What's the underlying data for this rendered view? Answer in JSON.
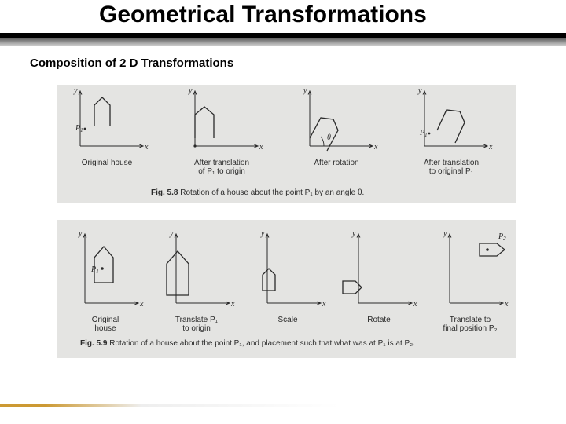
{
  "title": "Geometrical Transformations",
  "subtitle": "Composition of 2 D Transformations",
  "fig58": {
    "bg": "#e4e4e2",
    "stroke": "#2a2a2a",
    "panels": [
      {
        "label_lines": [
          "Original house"
        ],
        "axis_x": "x",
        "axis_y": "y",
        "point": "P",
        "point_sub": "1",
        "house": [
          [
            18,
            45
          ],
          [
            18,
            18
          ],
          [
            28,
            8
          ],
          [
            38,
            18
          ],
          [
            38,
            45
          ]
        ],
        "house_closed": false,
        "p_xy": [
          12,
          50
        ]
      },
      {
        "label_lines": [
          "After translation",
          "of P₁ to origin"
        ],
        "axis_x": "x",
        "axis_y": "y",
        "house": [
          [
            0,
            60
          ],
          [
            0,
            30
          ],
          [
            12,
            20
          ],
          [
            24,
            30
          ],
          [
            24,
            60
          ]
        ],
        "house_closed": false,
        "origin_dot": true
      },
      {
        "label_lines": [
          "After rotation"
        ],
        "axis_x": "x",
        "axis_y": "y",
        "house": [
          [
            0,
            60
          ],
          [
            14,
            34
          ],
          [
            30,
            36
          ],
          [
            36,
            50
          ],
          [
            22,
            76
          ]
        ],
        "house_closed": false,
        "theta": "θ",
        "theta_arc": true
      },
      {
        "label_lines": [
          "After translation",
          "to original P₁"
        ],
        "axis_x": "x",
        "axis_y": "y",
        "point": "P",
        "point_sub": "1",
        "house": [
          [
            16,
            50
          ],
          [
            28,
            24
          ],
          [
            45,
            26
          ],
          [
            51,
            40
          ],
          [
            39,
            66
          ]
        ],
        "house_closed": false,
        "p_xy": [
          12,
          56
        ]
      }
    ],
    "caption_bold": "Fig. 5.8",
    "caption_rest": "  Rotation of a house about the point P₁ by an angle θ."
  },
  "fig59": {
    "bg": "#e4e4e2",
    "stroke": "#2a2a2a",
    "panels": [
      {
        "label_lines": [
          "Original",
          "house"
        ],
        "axis_x": "x",
        "axis_y": "y",
        "house": [
          [
            12,
            62
          ],
          [
            12,
            30
          ],
          [
            24,
            16
          ],
          [
            36,
            30
          ],
          [
            36,
            62
          ],
          [
            12,
            62
          ]
        ],
        "house_closed": true,
        "p_label": "P",
        "p_sub": "1",
        "p_dot": [
          22,
          44
        ]
      },
      {
        "label_lines": [
          "Translate P₁",
          "to origin"
        ],
        "axis_x": "x",
        "axis_y": "y",
        "house": [
          [
            -12,
            78
          ],
          [
            -12,
            38
          ],
          [
            2,
            22
          ],
          [
            16,
            38
          ],
          [
            16,
            78
          ],
          [
            -12,
            78
          ]
        ],
        "house_closed": true
      },
      {
        "label_lines": [
          "Scale"
        ],
        "axis_x": "x",
        "axis_y": "y",
        "house": [
          [
            -6,
            72
          ],
          [
            -6,
            52
          ],
          [
            2,
            44
          ],
          [
            10,
            52
          ],
          [
            10,
            72
          ],
          [
            -6,
            72
          ]
        ],
        "house_closed": true
      },
      {
        "label_lines": [
          "Rotate"
        ],
        "axis_x": "x",
        "axis_y": "y",
        "house": [
          [
            -20,
            60
          ],
          [
            -4,
            60
          ],
          [
            4,
            68
          ],
          [
            -4,
            76
          ],
          [
            -20,
            76
          ],
          [
            -20,
            60
          ]
        ],
        "house_closed": true
      },
      {
        "label_lines": [
          "Translate to",
          "final position P₂"
        ],
        "axis_x": "x",
        "axis_y": "y",
        "p2_label": "P",
        "p2_sub": "2",
        "house": [
          [
            38,
            12
          ],
          [
            60,
            12
          ],
          [
            70,
            20
          ],
          [
            60,
            28
          ],
          [
            38,
            28
          ],
          [
            38,
            12
          ]
        ],
        "house_closed": true,
        "p_dot": [
          48,
          20
        ]
      }
    ],
    "caption_bold": "Fig. 5.9",
    "caption_rest": "  Rotation of a house about the point P₁, and placement such that what was at P₁ is at P₂."
  }
}
